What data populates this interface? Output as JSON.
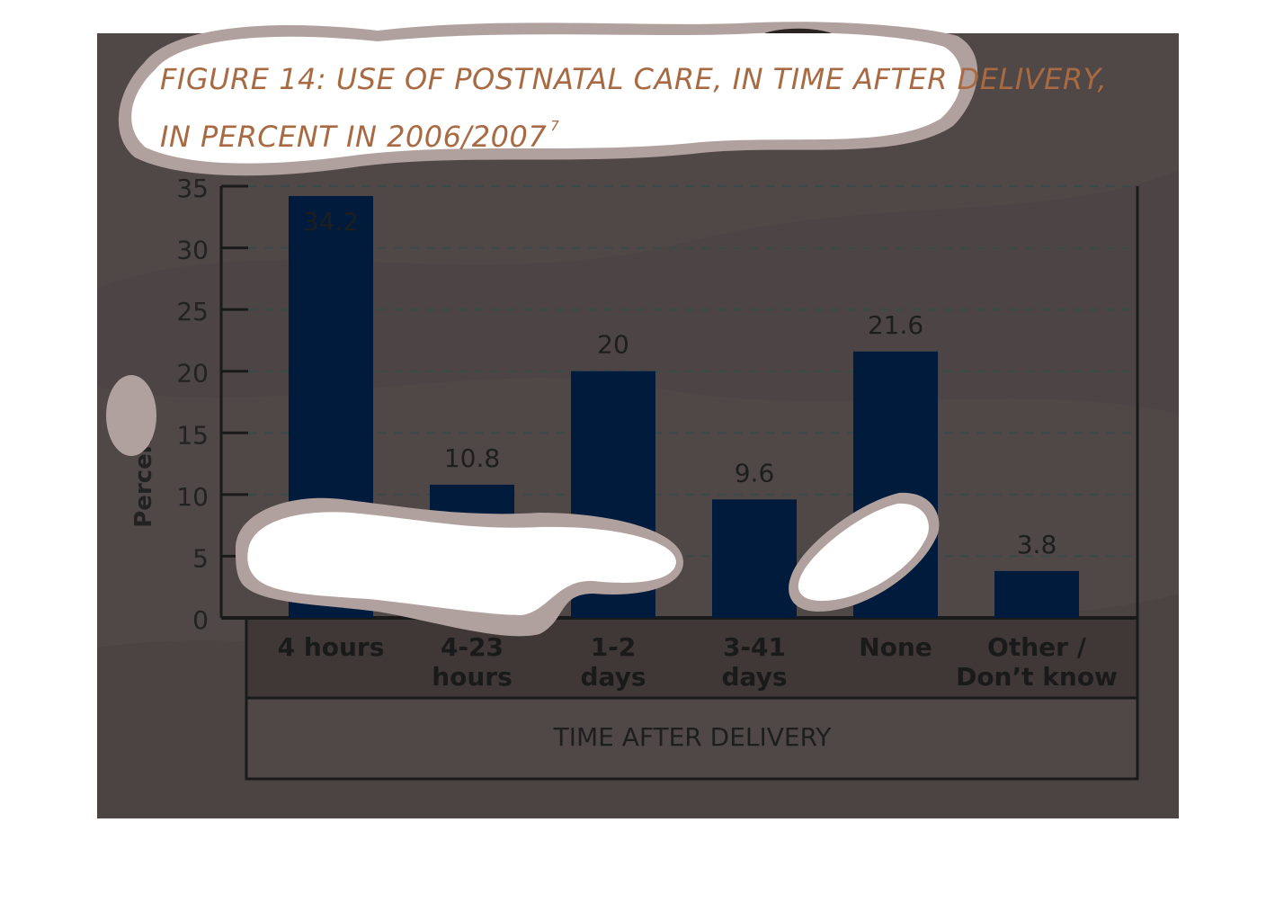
{
  "figure": {
    "title_line1": "FIGURE 14: USE OF POSTNATAL CARE, IN TIME AFTER DELIVERY,",
    "title_line2": "IN PERCENT IN 2006/2007",
    "title_footnote": "7"
  },
  "colors": {
    "panel_background": "#504847",
    "bar": "#011b3c",
    "axis": "#1a1a1a",
    "gridline": "#3a4a48",
    "title_text": "#a86a42",
    "highlight_blue": "#0673f0",
    "cloud_white": "#ffffff",
    "cloud_edge": "#b0a19e"
  },
  "chart_data": {
    "type": "bar",
    "title": "FIGURE 14: USE OF POSTNATAL CARE, IN TIME AFTER DELIVERY, IN PERCENT IN 2006/2007",
    "categories": [
      [
        "4 hours"
      ],
      [
        "4-23",
        "hours"
      ],
      [
        "1-2",
        "days"
      ],
      [
        "3-41",
        "days"
      ],
      [
        "None"
      ],
      [
        "Other /",
        "Don’t know"
      ]
    ],
    "values": [
      34.2,
      10.8,
      20,
      9.6,
      21.6,
      3.8
    ],
    "data_labels": [
      "34.2",
      "10.8",
      "20",
      "9.6",
      "21.6",
      "3.8"
    ],
    "ylabel": "Percent",
    "xlabel": "TIME AFTER DELIVERY",
    "ylim": [
      0,
      35
    ],
    "yticks": [
      0,
      5,
      10,
      15,
      20,
      25,
      30,
      35
    ],
    "grid": true
  }
}
